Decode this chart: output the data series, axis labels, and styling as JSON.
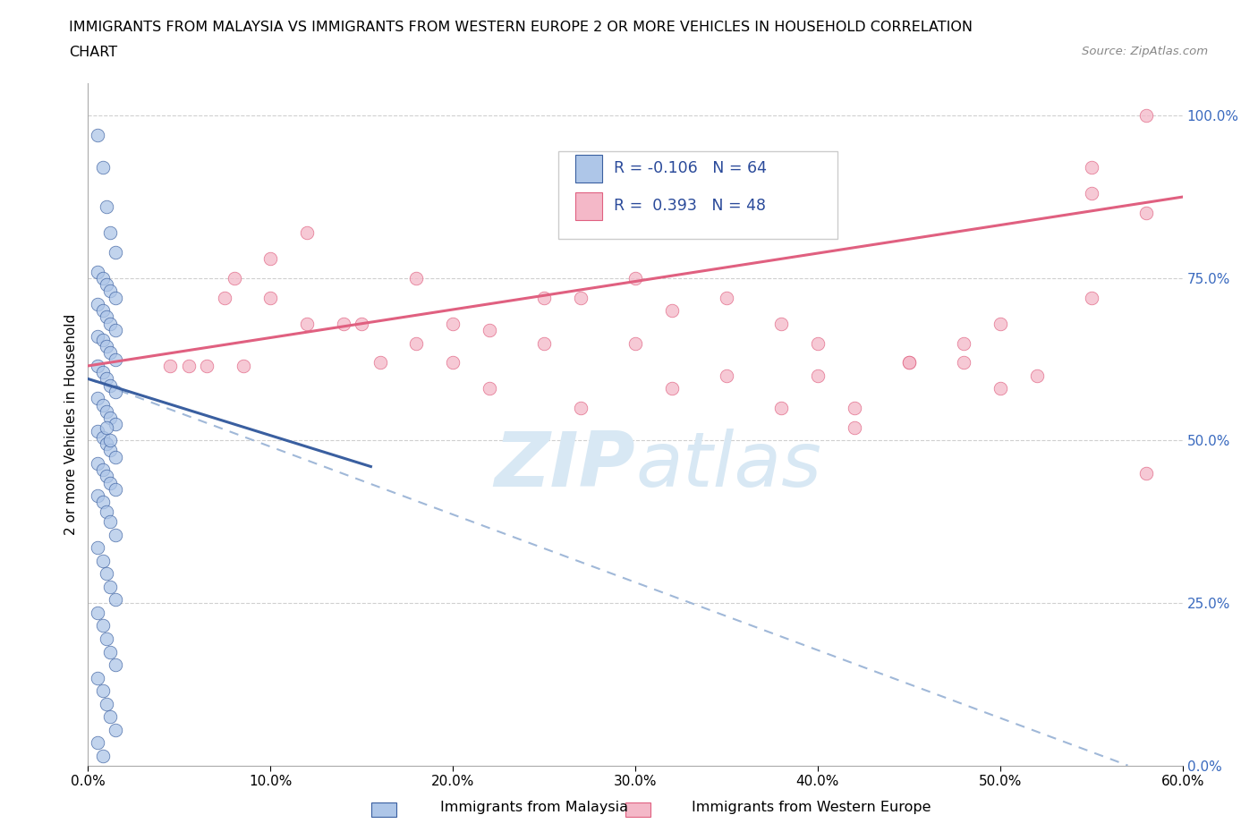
{
  "title_line1": "IMMIGRANTS FROM MALAYSIA VS IMMIGRANTS FROM WESTERN EUROPE 2 OR MORE VEHICLES IN HOUSEHOLD CORRELATION",
  "title_line2": "CHART",
  "source_text": "Source: ZipAtlas.com",
  "ylabel": "2 or more Vehicles in Household",
  "legend_label1": "Immigrants from Malaysia",
  "legend_label2": "Immigrants from Western Europe",
  "R1": -0.106,
  "N1": 64,
  "R2": 0.393,
  "N2": 48,
  "color1": "#aec6e8",
  "color2": "#f4b8c8",
  "line1_color": "#3a5fa0",
  "line2_color": "#e06080",
  "dash_color": "#a0b8d8",
  "watermark_color": "#d8e8f4",
  "xlim": [
    0.0,
    0.6
  ],
  "ylim": [
    0.0,
    1.05
  ],
  "xticks": [
    0.0,
    0.1,
    0.2,
    0.3,
    0.4,
    0.5,
    0.6
  ],
  "xticklabels": [
    "0.0%",
    "10.0%",
    "20.0%",
    "30.0%",
    "40.0%",
    "50.0%",
    "60.0%"
  ],
  "yticks": [
    0.0,
    0.25,
    0.5,
    0.75,
    1.0
  ],
  "yticklabels": [
    "0.0%",
    "25.0%",
    "50.0%",
    "75.0%",
    "100.0%"
  ],
  "blue_dots_x": [
    0.005,
    0.008,
    0.01,
    0.012,
    0.015,
    0.005,
    0.008,
    0.01,
    0.012,
    0.015,
    0.005,
    0.008,
    0.01,
    0.012,
    0.015,
    0.005,
    0.008,
    0.01,
    0.012,
    0.015,
    0.005,
    0.008,
    0.01,
    0.012,
    0.015,
    0.005,
    0.008,
    0.01,
    0.012,
    0.015,
    0.005,
    0.008,
    0.01,
    0.012,
    0.015,
    0.005,
    0.008,
    0.01,
    0.012,
    0.015,
    0.005,
    0.008,
    0.01,
    0.012,
    0.015,
    0.005,
    0.008,
    0.01,
    0.012,
    0.015,
    0.005,
    0.008,
    0.01,
    0.012,
    0.015,
    0.005,
    0.008,
    0.01,
    0.012,
    0.015,
    0.005,
    0.008,
    0.01,
    0.012
  ],
  "blue_dots_y": [
    0.97,
    0.92,
    0.86,
    0.82,
    0.79,
    0.76,
    0.75,
    0.74,
    0.73,
    0.72,
    0.71,
    0.7,
    0.69,
    0.68,
    0.67,
    0.66,
    0.655,
    0.645,
    0.635,
    0.625,
    0.615,
    0.605,
    0.595,
    0.585,
    0.575,
    0.565,
    0.555,
    0.545,
    0.535,
    0.525,
    0.515,
    0.505,
    0.495,
    0.485,
    0.475,
    0.465,
    0.455,
    0.445,
    0.435,
    0.425,
    0.415,
    0.405,
    0.39,
    0.375,
    0.355,
    0.335,
    0.315,
    0.295,
    0.275,
    0.255,
    0.235,
    0.215,
    0.195,
    0.175,
    0.155,
    0.135,
    0.115,
    0.095,
    0.075,
    0.055,
    0.035,
    0.015,
    0.52,
    0.5
  ],
  "pink_dots_x": [
    0.045,
    0.055,
    0.065,
    0.075,
    0.085,
    0.1,
    0.12,
    0.14,
    0.16,
    0.18,
    0.2,
    0.22,
    0.25,
    0.27,
    0.3,
    0.32,
    0.35,
    0.38,
    0.4,
    0.42,
    0.45,
    0.48,
    0.5,
    0.52,
    0.55,
    0.58,
    0.08,
    0.1,
    0.12,
    0.15,
    0.18,
    0.2,
    0.22,
    0.25,
    0.27,
    0.3,
    0.32,
    0.35,
    0.38,
    0.4,
    0.42,
    0.45,
    0.48,
    0.5,
    0.55,
    0.58,
    0.58,
    0.55
  ],
  "pink_dots_y": [
    0.615,
    0.615,
    0.615,
    0.72,
    0.615,
    0.72,
    0.68,
    0.68,
    0.62,
    0.65,
    0.68,
    0.58,
    0.72,
    0.72,
    0.75,
    0.7,
    0.72,
    0.68,
    0.6,
    0.55,
    0.62,
    0.62,
    0.58,
    0.6,
    0.72,
    1.0,
    0.75,
    0.78,
    0.82,
    0.68,
    0.75,
    0.62,
    0.67,
    0.65,
    0.55,
    0.65,
    0.58,
    0.6,
    0.55,
    0.65,
    0.52,
    0.62,
    0.65,
    0.68,
    0.88,
    0.85,
    0.45,
    0.92
  ],
  "blue_line_x": [
    0.0,
    0.155
  ],
  "blue_line_y": [
    0.595,
    0.46
  ],
  "dash_line_x": [
    0.0,
    0.57
  ],
  "dash_line_y": [
    0.595,
    0.0
  ],
  "pink_line_x": [
    0.0,
    0.6
  ],
  "pink_line_y": [
    0.615,
    0.875
  ]
}
